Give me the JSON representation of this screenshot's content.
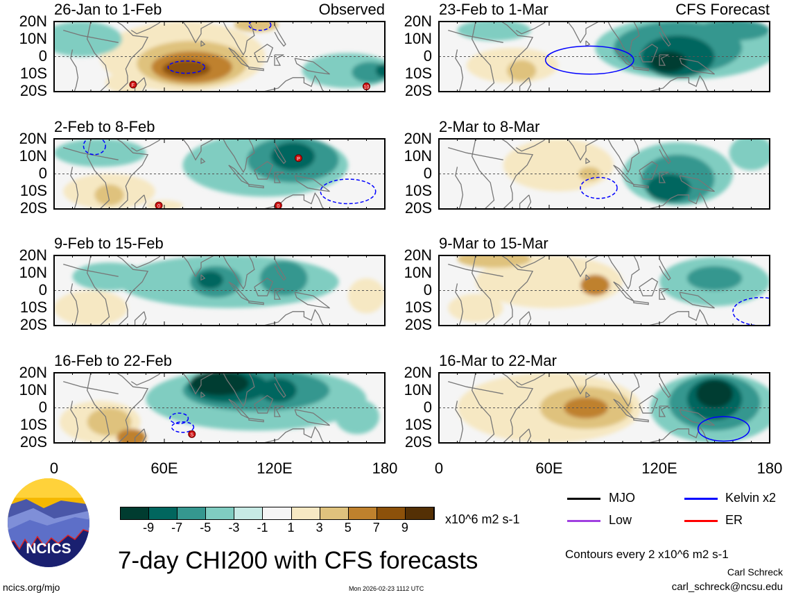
{
  "panels": [
    {
      "title": "26-Jan to 1-Feb",
      "tag": "Observed",
      "blobs": [
        [
          70,
          0,
          45,
          20,
          3
        ],
        [
          75,
          -4,
          30,
          13,
          5
        ],
        [
          75,
          -6,
          22,
          9,
          7
        ],
        [
          72,
          -7,
          13,
          5,
          9
        ],
        [
          40,
          -15,
          12,
          6,
          3
        ],
        [
          110,
          18,
          12,
          4,
          5
        ],
        [
          15,
          10,
          22,
          10,
          -3
        ],
        [
          160,
          -8,
          25,
          10,
          -3
        ],
        [
          172,
          -9,
          10,
          6,
          -5
        ],
        [
          180,
          -8,
          5,
          4,
          -7
        ]
      ],
      "contours": [
        [
          72,
          -6,
          10,
          3.5,
          "dashed"
        ],
        [
          112,
          18,
          6,
          3,
          "dashed"
        ]
      ],
      "storms": [
        [
          "F",
          43,
          -16
        ],
        [
          "10",
          170,
          -17
        ]
      ]
    },
    {
      "title": "2-Feb to 8-Feb",
      "tag": "",
      "blobs": [
        [
          115,
          5,
          45,
          18,
          -3
        ],
        [
          130,
          8,
          25,
          13,
          -5
        ],
        [
          130,
          10,
          12,
          8,
          -7
        ],
        [
          25,
          12,
          25,
          8,
          -3
        ],
        [
          30,
          -10,
          25,
          10,
          3
        ],
        [
          30,
          -12,
          8,
          6,
          5
        ],
        [
          60,
          -18,
          10,
          3,
          3
        ]
      ],
      "contours": [
        [
          22,
          16,
          6,
          5,
          "dashed"
        ],
        [
          160,
          -10,
          15,
          7,
          "dashed"
        ]
      ],
      "storms": [
        [
          "P",
          133,
          9
        ],
        [
          "0",
          57,
          -18
        ],
        [
          "0",
          122,
          -18
        ]
      ]
    },
    {
      "title": "9-Feb to 15-Feb",
      "tag": "",
      "blobs": [
        [
          95,
          5,
          60,
          15,
          -3
        ],
        [
          88,
          5,
          14,
          9,
          -5
        ],
        [
          125,
          7,
          13,
          10,
          -5
        ],
        [
          85,
          6,
          7,
          5,
          -7
        ],
        [
          170,
          -3,
          10,
          10,
          3
        ],
        [
          20,
          -10,
          20,
          10,
          3
        ],
        [
          30,
          8,
          20,
          8,
          -3
        ]
      ],
      "contours": [],
      "storms": []
    },
    {
      "title": "16-Feb to 22-Feb",
      "tag": "",
      "blobs": [
        [
          110,
          5,
          60,
          18,
          -3
        ],
        [
          110,
          10,
          40,
          12,
          -5
        ],
        [
          95,
          12,
          22,
          9,
          -7
        ],
        [
          90,
          14,
          16,
          7,
          -9
        ],
        [
          122,
          10,
          10,
          7,
          -7
        ],
        [
          25,
          -8,
          22,
          12,
          3
        ],
        [
          30,
          -8,
          12,
          8,
          5
        ],
        [
          42,
          -17,
          8,
          5,
          7
        ],
        [
          165,
          -5,
          12,
          10,
          -3
        ]
      ],
      "contours": [
        [
          68,
          -6,
          5,
          3,
          "dashed"
        ],
        [
          70,
          -11,
          6,
          3,
          "dashed"
        ]
      ],
      "storms": [
        [
          "S",
          75,
          -15
        ]
      ]
    },
    {
      "title": "23-Feb to 1-Mar",
      "tag": "CFS Forecast",
      "blobs": [
        [
          135,
          5,
          50,
          18,
          -3
        ],
        [
          130,
          5,
          35,
          15,
          -5
        ],
        [
          130,
          0,
          20,
          12,
          -7
        ],
        [
          125,
          -3,
          10,
          6,
          -9
        ],
        [
          160,
          15,
          20,
          6,
          -5
        ],
        [
          30,
          15,
          20,
          6,
          -3
        ],
        [
          40,
          -5,
          25,
          10,
          3
        ],
        [
          45,
          -8,
          8,
          6,
          5
        ]
      ],
      "contours": [
        [
          82,
          -2,
          24,
          8,
          "solid"
        ]
      ],
      "storms": []
    },
    {
      "title": "2-Mar to 8-Mar",
      "tag": "",
      "blobs": [
        [
          65,
          5,
          30,
          15,
          3
        ],
        [
          82,
          0,
          6,
          4,
          5
        ],
        [
          130,
          0,
          30,
          18,
          -3
        ],
        [
          130,
          -3,
          20,
          14,
          -5
        ],
        [
          125,
          -8,
          12,
          8,
          -7
        ],
        [
          170,
          12,
          12,
          10,
          -3
        ]
      ],
      "contours": [
        [
          87,
          -8,
          10,
          6,
          "dashed"
        ]
      ],
      "storms": []
    },
    {
      "title": "9-Mar to 15-Mar",
      "tag": "",
      "blobs": [
        [
          60,
          5,
          40,
          15,
          3
        ],
        [
          30,
          18,
          20,
          5,
          5
        ],
        [
          85,
          3,
          8,
          6,
          7
        ],
        [
          150,
          5,
          30,
          14,
          -3
        ],
        [
          150,
          7,
          15,
          7,
          -5
        ],
        [
          20,
          -10,
          15,
          8,
          3
        ]
      ],
      "contours": [
        [
          175,
          -12,
          15,
          8,
          "dashed"
        ]
      ],
      "storms": []
    },
    {
      "title": "16-Mar to 22-Mar",
      "tag": "",
      "blobs": [
        [
          60,
          0,
          50,
          20,
          3
        ],
        [
          80,
          0,
          25,
          12,
          5
        ],
        [
          80,
          0,
          12,
          6,
          7
        ],
        [
          150,
          0,
          35,
          20,
          -3
        ],
        [
          150,
          3,
          25,
          16,
          -5
        ],
        [
          150,
          5,
          15,
          12,
          -7
        ],
        [
          150,
          8,
          10,
          8,
          -9
        ]
      ],
      "contours": [
        [
          155,
          -12,
          14,
          7,
          "solid"
        ]
      ],
      "storms": []
    }
  ],
  "lat_labels": [
    "20N",
    "10N",
    "0",
    "10S",
    "20S"
  ],
  "lon_labels": [
    "0",
    "60E",
    "120E",
    "180"
  ],
  "colorbar": {
    "colors": [
      "#003c30",
      "#01665e",
      "#35978f",
      "#80cdc1",
      "#c7eae5",
      "#f5f5f5",
      "#f6e8c3",
      "#dfc27d",
      "#bf812d",
      "#8c510a",
      "#543005"
    ],
    "labels": [
      "-9",
      "-7",
      "-5",
      "-3",
      "-1",
      "1",
      "3",
      "5",
      "7",
      "9"
    ],
    "units": "x10^6 m2 s-1"
  },
  "legend": [
    {
      "label": "MJO",
      "color": "#000000"
    },
    {
      "label": "Kelvin x2",
      "color": "#0000ff"
    },
    {
      "label": "Low",
      "color": "#a040e0"
    },
    {
      "label": "ER",
      "color": "#ff0000"
    }
  ],
  "title": "7-day CHI200 with CFS forecasts",
  "contour_note": "Contours every 2 x10^6 m2 s-1",
  "author": "Carl Schreck",
  "email": "carl_schreck@ncsu.edu",
  "site": "ncics.org/mjo",
  "timestamp": "Mon 2026-02-23 1112 UTC",
  "logo_text": "NCICS"
}
